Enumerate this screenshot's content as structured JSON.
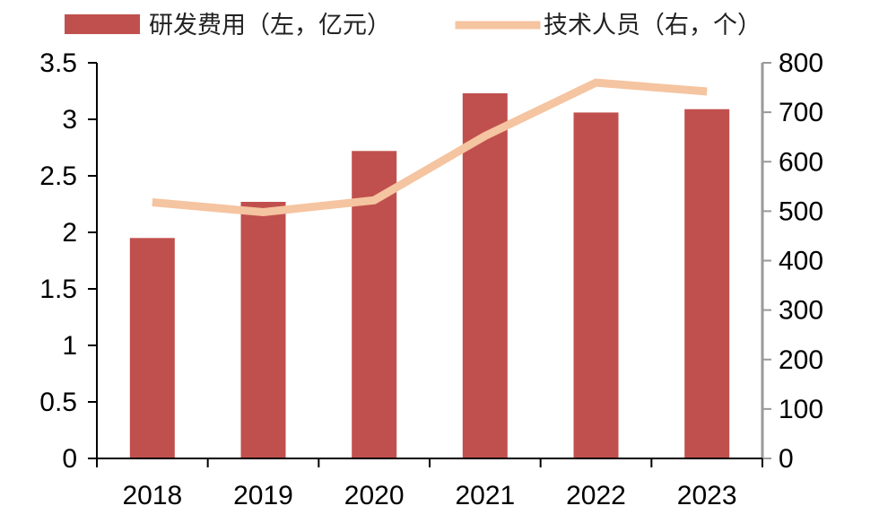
{
  "chart_data": {
    "type": "bar",
    "categories": [
      "2018",
      "2019",
      "2020",
      "2021",
      "2022",
      "2023"
    ],
    "series": [
      {
        "name": "研发费用（左，亿元）",
        "type": "bar",
        "axis": "left",
        "color": "#C0504D",
        "values": [
          1.95,
          2.27,
          2.72,
          3.23,
          3.06,
          3.09
        ]
      },
      {
        "name": "技术人员（右，个）",
        "type": "line",
        "axis": "right",
        "color": "#F5C4A0",
        "values": [
          518,
          498,
          522,
          652,
          760,
          742
        ]
      }
    ],
    "y_left": {
      "range": [
        0,
        3.5
      ],
      "ticks": [
        "0",
        "0.5",
        "1",
        "1.5",
        "2",
        "2.5",
        "3",
        "3.5"
      ],
      "tick_values": [
        0,
        0.5,
        1,
        1.5,
        2,
        2.5,
        3,
        3.5
      ]
    },
    "y_right": {
      "range": [
        0,
        800
      ],
      "ticks": [
        "0",
        "100",
        "200",
        "300",
        "400",
        "500",
        "600",
        "700",
        "800"
      ],
      "tick_values": [
        0,
        100,
        200,
        300,
        400,
        500,
        600,
        700,
        800
      ]
    },
    "grid": false,
    "legend_position": "top"
  }
}
